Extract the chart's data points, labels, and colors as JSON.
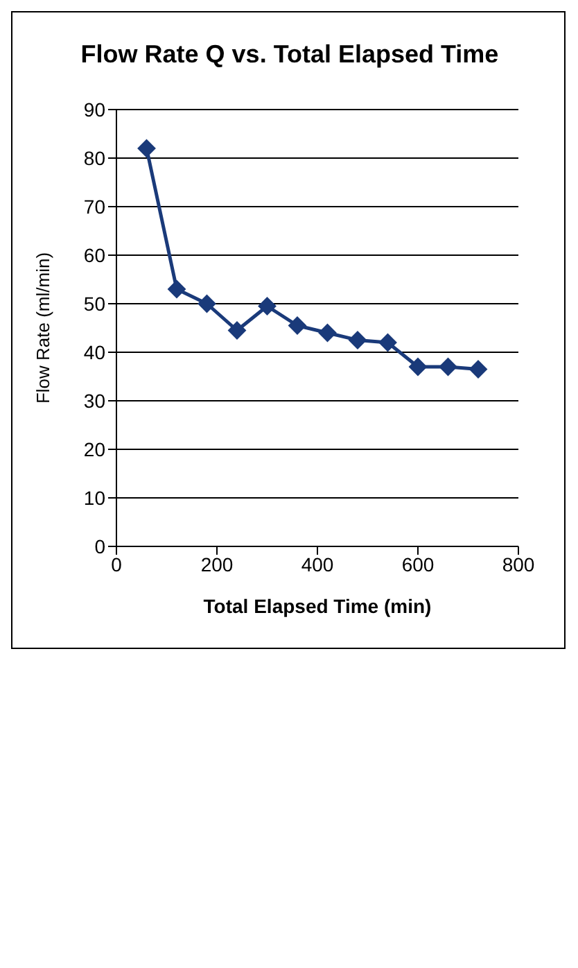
{
  "chart_data": {
    "type": "line",
    "title": "Flow Rate Q vs. Total Elapsed Time",
    "xlabel": "Total Elapsed Time (min)",
    "ylabel": "Flow Rate (ml/min)",
    "x": [
      60,
      120,
      180,
      240,
      300,
      360,
      420,
      480,
      540,
      600,
      660,
      720
    ],
    "series": [
      {
        "color": "#1a3a7a",
        "values": [
          82,
          53,
          50,
          44.5,
          49.5,
          45.5,
          44,
          42.5,
          42,
          37,
          37,
          36.5
        ]
      }
    ],
    "xlim": [
      0,
      800
    ],
    "xticks": [
      0,
      200,
      400,
      600,
      800
    ],
    "ylim": [
      0,
      90
    ],
    "yticks": [
      0,
      10,
      20,
      30,
      40,
      50,
      60,
      70,
      80,
      90
    ],
    "grid": "y",
    "legend": false,
    "marker": "diamond",
    "line_style": "solid"
  }
}
